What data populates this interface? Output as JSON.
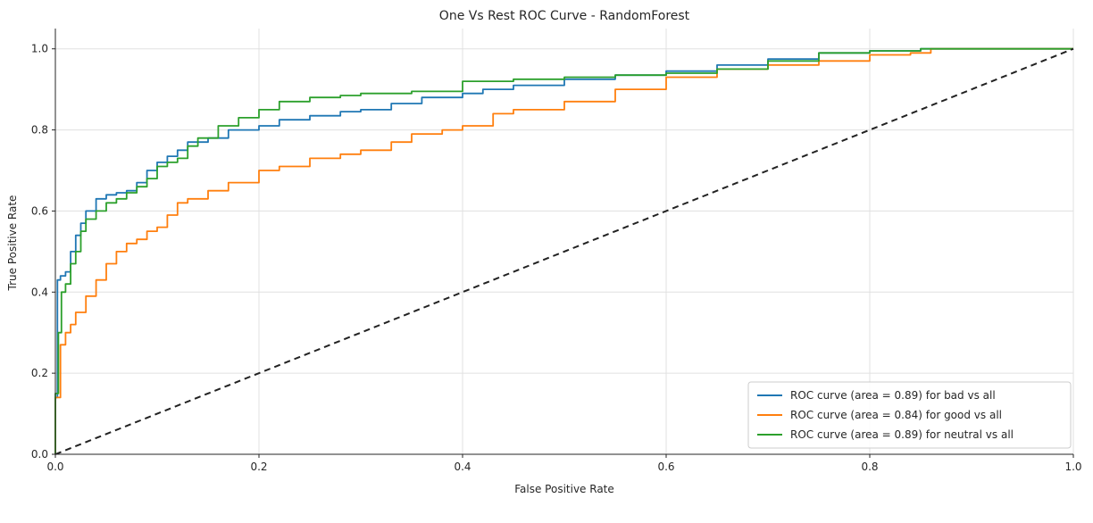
{
  "chart_data": {
    "type": "line",
    "title": "One Vs Rest ROC Curve - RandomForest",
    "xlabel": "False Positive Rate",
    "ylabel": "True Positive Rate",
    "xlim": [
      0,
      1
    ],
    "ylim": [
      0,
      1.05
    ],
    "xticks": [
      0,
      0.2,
      0.4,
      0.6,
      0.8,
      1.0
    ],
    "xtick_labels": [
      "0.0",
      "0.2",
      "0.4",
      "0.6",
      "0.8",
      "1.0"
    ],
    "yticks": [
      0,
      0.2,
      0.4,
      0.6,
      0.8,
      1.0
    ],
    "ytick_labels": [
      "0.0",
      "0.2",
      "0.4",
      "0.6",
      "0.8",
      "1.0"
    ],
    "grid": true,
    "legend_position": "bottom-right",
    "series": [
      {
        "name": "ROC curve (area = 0.89) for bad vs all",
        "color": "#1f77b4",
        "x": [
          0,
          0,
          0.002,
          0.005,
          0.01,
          0.015,
          0.02,
          0.025,
          0.03,
          0.04,
          0.05,
          0.06,
          0.07,
          0.08,
          0.09,
          0.1,
          0.11,
          0.12,
          0.13,
          0.15,
          0.17,
          0.2,
          0.22,
          0.25,
          0.28,
          0.3,
          0.33,
          0.36,
          0.4,
          0.42,
          0.45,
          0.5,
          0.55,
          0.6,
          0.65,
          0.7,
          0.75,
          0.8,
          0.85,
          0.9,
          1.0
        ],
        "y": [
          0,
          0.14,
          0.43,
          0.44,
          0.45,
          0.5,
          0.54,
          0.57,
          0.6,
          0.63,
          0.64,
          0.645,
          0.65,
          0.67,
          0.7,
          0.72,
          0.735,
          0.75,
          0.77,
          0.78,
          0.8,
          0.81,
          0.825,
          0.835,
          0.845,
          0.85,
          0.865,
          0.88,
          0.89,
          0.9,
          0.91,
          0.925,
          0.935,
          0.945,
          0.96,
          0.975,
          0.99,
          0.995,
          1.0,
          1.0,
          1.0
        ]
      },
      {
        "name": "ROC curve (area = 0.84) for good vs all",
        "color": "#ff7f0e",
        "x": [
          0,
          0,
          0.005,
          0.01,
          0.015,
          0.02,
          0.03,
          0.04,
          0.05,
          0.06,
          0.07,
          0.08,
          0.09,
          0.1,
          0.11,
          0.12,
          0.13,
          0.15,
          0.17,
          0.2,
          0.22,
          0.25,
          0.28,
          0.3,
          0.33,
          0.35,
          0.38,
          0.4,
          0.43,
          0.45,
          0.5,
          0.55,
          0.6,
          0.65,
          0.7,
          0.75,
          0.8,
          0.84,
          0.86,
          0.9,
          1.0
        ],
        "y": [
          0,
          0.14,
          0.27,
          0.3,
          0.32,
          0.35,
          0.39,
          0.43,
          0.47,
          0.5,
          0.52,
          0.53,
          0.55,
          0.56,
          0.59,
          0.62,
          0.63,
          0.65,
          0.67,
          0.7,
          0.71,
          0.73,
          0.74,
          0.75,
          0.77,
          0.79,
          0.8,
          0.81,
          0.84,
          0.85,
          0.87,
          0.9,
          0.93,
          0.95,
          0.96,
          0.97,
          0.985,
          0.99,
          1.0,
          1.0,
          1.0
        ]
      },
      {
        "name": "ROC curve (area = 0.89) for neutral vs all",
        "color": "#2ca02c",
        "x": [
          0,
          0,
          0.003,
          0.006,
          0.01,
          0.015,
          0.02,
          0.025,
          0.03,
          0.04,
          0.05,
          0.06,
          0.07,
          0.08,
          0.09,
          0.1,
          0.11,
          0.12,
          0.13,
          0.14,
          0.16,
          0.18,
          0.2,
          0.22,
          0.25,
          0.28,
          0.3,
          0.35,
          0.4,
          0.45,
          0.5,
          0.55,
          0.6,
          0.65,
          0.7,
          0.75,
          0.8,
          0.85,
          0.9,
          1.0
        ],
        "y": [
          0,
          0.15,
          0.3,
          0.4,
          0.42,
          0.47,
          0.5,
          0.55,
          0.58,
          0.6,
          0.62,
          0.63,
          0.645,
          0.66,
          0.68,
          0.71,
          0.72,
          0.73,
          0.76,
          0.78,
          0.81,
          0.83,
          0.85,
          0.87,
          0.88,
          0.885,
          0.89,
          0.895,
          0.92,
          0.925,
          0.93,
          0.935,
          0.94,
          0.95,
          0.97,
          0.99,
          0.995,
          1.0,
          1.0,
          1.0
        ]
      },
      {
        "name": "chance",
        "color": "#222222",
        "dashed": true,
        "x": [
          0,
          1
        ],
        "y": [
          0,
          1
        ]
      }
    ]
  }
}
